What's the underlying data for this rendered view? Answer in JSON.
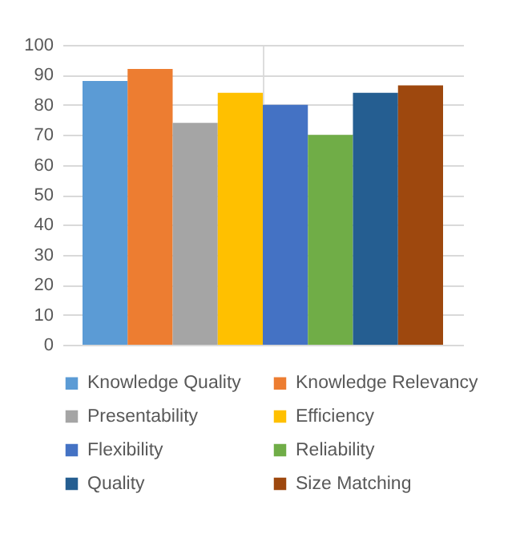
{
  "chart_data": {
    "type": "bar",
    "categories": [
      null
    ],
    "series": [
      {
        "name": "Knowledge Quality",
        "color": "#5b9bd5",
        "values": [
          88
        ]
      },
      {
        "name": "Knowledge Relevancy",
        "color": "#ed7d31",
        "values": [
          92
        ]
      },
      {
        "name": "Presentability",
        "color": "#a5a5a5",
        "values": [
          74
        ]
      },
      {
        "name": "Efficiency",
        "color": "#ffc000",
        "values": [
          84
        ]
      },
      {
        "name": "Flexibility",
        "color": "#4472c4",
        "values": [
          80
        ]
      },
      {
        "name": "Reliability",
        "color": "#70ad47",
        "values": [
          70
        ]
      },
      {
        "name": "Quality",
        "color": "#255e91",
        "values": [
          84
        ]
      },
      {
        "name": "Size Matching",
        "color": "#9e480e",
        "values": [
          86.5
        ]
      }
    ],
    "ylim": [
      0,
      100
    ],
    "yticks": [
      0,
      10,
      20,
      30,
      40,
      50,
      60,
      70,
      80,
      90,
      100
    ],
    "grid": true,
    "legend": "bottom",
    "tick_labels": "y"
  }
}
